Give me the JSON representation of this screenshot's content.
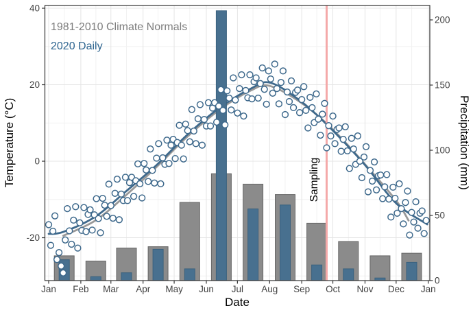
{
  "chart_data": {
    "type": "combo",
    "title": "",
    "x_axis": {
      "label": "Date",
      "tick_labels": [
        "Jan",
        "Feb",
        "Mar",
        "Apr",
        "May",
        "Jun",
        "Jul",
        "Aug",
        "Sep",
        "Oct",
        "Nov",
        "Dec",
        "Jan"
      ]
    },
    "y_left": {
      "label": "Temperature (°C)",
      "ticks": [
        -20,
        0,
        20,
        40
      ],
      "range": [
        -31,
        41
      ]
    },
    "y_right": {
      "label": "Precipitation (mm)",
      "ticks": [
        0,
        50,
        100,
        150,
        200
      ],
      "range": [
        0,
        211
      ]
    },
    "legend": [
      {
        "label": "1981-2010 Climate Normals",
        "color": "#7d7d7d"
      },
      {
        "label": "2020 Daily",
        "color": "#2e6590"
      }
    ],
    "bars_monthly_precip_mm": {
      "categories": [
        "Jan",
        "Feb",
        "Mar",
        "Apr",
        "May",
        "Jun",
        "Jul",
        "Aug",
        "Sep",
        "Oct",
        "Nov",
        "Dec"
      ],
      "series": [
        {
          "name": "1981-2010 Climate Normals",
          "values": [
            19,
            15,
            25,
            26,
            60,
            82,
            74,
            66,
            44,
            30,
            19,
            21
          ]
        },
        {
          "name": "2020 Daily",
          "values": [
            16,
            3,
            6,
            24,
            9,
            207,
            55,
            58,
            12,
            9,
            2,
            14
          ]
        }
      ]
    },
    "smooth_temp_lines_c": {
      "normals_anchors": [
        [
          15,
          -19.5
        ],
        [
          46,
          -15.5
        ],
        [
          75,
          -9
        ],
        [
          105,
          -1.5
        ],
        [
          135,
          6.5
        ],
        [
          166,
          13.5
        ],
        [
          196,
          18.5
        ],
        [
          214,
          19.7
        ],
        [
          245,
          15.2
        ],
        [
          275,
          8.3
        ],
        [
          306,
          -0.8
        ],
        [
          336,
          -10.3
        ],
        [
          348,
          -15.5
        ]
      ],
      "daily2020_anchors": [
        [
          1,
          -19
        ],
        [
          15,
          -18.5
        ],
        [
          46,
          -14.5
        ],
        [
          75,
          -8
        ],
        [
          105,
          -1
        ],
        [
          135,
          7
        ],
        [
          166,
          14
        ],
        [
          196,
          19
        ],
        [
          215,
          20.5
        ],
        [
          245,
          15.5
        ],
        [
          275,
          8
        ],
        [
          306,
          -1
        ],
        [
          336,
          -11
        ],
        [
          366,
          -16.5
        ]
      ]
    },
    "daily_temp_points_c": [
      [
        1,
        -16.6
      ],
      [
        3,
        -22
      ],
      [
        5,
        -18.3
      ],
      [
        7,
        -14.3
      ],
      [
        9,
        -25.7
      ],
      [
        11,
        -23.9
      ],
      [
        13,
        -27.4
      ],
      [
        15,
        -29.2
      ],
      [
        17,
        -20.6
      ],
      [
        19,
        -12.4
      ],
      [
        21,
        -18.2
      ],
      [
        23,
        -21.7
      ],
      [
        25,
        -15.4
      ],
      [
        27,
        -11.9
      ],
      [
        29,
        -22.7
      ],
      [
        31,
        -16.1
      ],
      [
        33,
        -18.1
      ],
      [
        35,
        -12.1
      ],
      [
        37,
        -18.4
      ],
      [
        39,
        -13.9
      ],
      [
        41,
        -12.7
      ],
      [
        43,
        -18
      ],
      [
        45,
        -14
      ],
      [
        47,
        -9.8
      ],
      [
        49,
        -15
      ],
      [
        51,
        -18.7
      ],
      [
        53,
        -9.7
      ],
      [
        55,
        -11.5
      ],
      [
        57,
        -14.4
      ],
      [
        59,
        -6
      ],
      [
        61,
        -11.6
      ],
      [
        63,
        -14.9
      ],
      [
        65,
        -8.4
      ],
      [
        67,
        -4.7
      ],
      [
        69,
        -15.3
      ],
      [
        71,
        -8.6
      ],
      [
        73,
        -10.3
      ],
      [
        75,
        -4.2
      ],
      [
        77,
        -10.3
      ],
      [
        79,
        -5.6
      ],
      [
        81,
        -4.2
      ],
      [
        83,
        -9.2
      ],
      [
        85,
        -5.1
      ],
      [
        87,
        -0.7
      ],
      [
        89,
        -5.9
      ],
      [
        91,
        -9.6
      ],
      [
        93,
        -0.6
      ],
      [
        95,
        -2.3
      ],
      [
        97,
        -5.3
      ],
      [
        99,
        3.2
      ],
      [
        101,
        -2.4
      ],
      [
        103,
        -5.7
      ],
      [
        105,
        0.8
      ],
      [
        107,
        4.6
      ],
      [
        109,
        -5.9
      ],
      [
        111,
        0.9
      ],
      [
        113,
        -0.8
      ],
      [
        115,
        5.5
      ],
      [
        117,
        -0.6
      ],
      [
        119,
        4.2
      ],
      [
        121,
        5.7
      ],
      [
        123,
        0.7
      ],
      [
        125,
        4.9
      ],
      [
        127,
        9.4
      ],
      [
        129,
        4.2
      ],
      [
        131,
        0.6
      ],
      [
        133,
        9.7
      ],
      [
        135,
        8
      ],
      [
        137,
        5.1
      ],
      [
        139,
        13.5
      ],
      [
        141,
        7.9
      ],
      [
        143,
        4.6
      ],
      [
        145,
        11.1
      ],
      [
        147,
        14.8
      ],
      [
        149,
        4.2
      ],
      [
        151,
        10.9
      ],
      [
        153,
        9.2
      ],
      [
        155,
        15.3
      ],
      [
        157,
        9.2
      ],
      [
        159,
        13.9
      ],
      [
        161,
        15.3
      ],
      [
        163,
        10.2
      ],
      [
        165,
        14.4
      ],
      [
        167,
        18.7
      ],
      [
        169,
        13.3
      ],
      [
        171,
        9.5
      ],
      [
        173,
        18.4
      ],
      [
        175,
        16.5
      ],
      [
        177,
        13.4
      ],
      [
        179,
        21.8
      ],
      [
        181,
        16
      ],
      [
        183,
        12.6
      ],
      [
        185,
        19
      ],
      [
        187,
        22.6
      ],
      [
        189,
        11.8
      ],
      [
        191,
        18.5
      ],
      [
        193,
        16.6
      ],
      [
        195,
        22.6
      ],
      [
        197,
        16.3
      ],
      [
        199,
        20.8
      ],
      [
        201,
        21.8
      ],
      [
        203,
        16.5
      ],
      [
        205,
        20.3
      ],
      [
        207,
        24.4
      ],
      [
        209,
        18.8
      ],
      [
        211,
        14.9
      ],
      [
        213,
        23.6
      ],
      [
        215,
        21.5
      ],
      [
        217,
        17.8
      ],
      [
        219,
        25.4
      ],
      [
        221,
        19
      ],
      [
        223,
        15
      ],
      [
        225,
        20.6
      ],
      [
        227,
        23.6
      ],
      [
        229,
        12.2
      ],
      [
        231,
        18.1
      ],
      [
        233,
        15.6
      ],
      [
        235,
        21
      ],
      [
        237,
        14
      ],
      [
        239,
        18
      ],
      [
        241,
        18.6
      ],
      [
        243,
        12.7
      ],
      [
        245,
        16.1
      ],
      [
        247,
        19.5
      ],
      [
        249,
        13.3
      ],
      [
        251,
        8.7
      ],
      [
        253,
        16.7
      ],
      [
        255,
        14
      ],
      [
        257,
        10.1
      ],
      [
        259,
        17.6
      ],
      [
        261,
        11
      ],
      [
        263,
        6.8
      ],
      [
        265,
        12.3
      ],
      [
        267,
        15.1
      ],
      [
        269,
        3.5
      ],
      [
        271,
        9.3
      ],
      [
        273,
        6.6
      ],
      [
        275,
        11.8
      ],
      [
        277,
        4.6
      ],
      [
        279,
        8.3
      ],
      [
        281,
        8.7
      ],
      [
        283,
        2.6
      ],
      [
        285,
        5.7
      ],
      [
        287,
        9
      ],
      [
        289,
        2.7
      ],
      [
        291,
        -1.9
      ],
      [
        293,
        6
      ],
      [
        295,
        3.2
      ],
      [
        297,
        -0.8
      ],
      [
        299,
        6.6
      ],
      [
        301,
        0
      ],
      [
        303,
        -4.3
      ],
      [
        305,
        1.1
      ],
      [
        307,
        3.8
      ],
      [
        309,
        -8
      ],
      [
        311,
        -2.4
      ],
      [
        313,
        -5.2
      ],
      [
        315,
        -0.2
      ],
      [
        317,
        -7.5
      ],
      [
        319,
        -3.8
      ],
      [
        321,
        -3.6
      ],
      [
        323,
        -9.8
      ],
      [
        325,
        -6.7
      ],
      [
        327,
        -3.5
      ],
      [
        329,
        -9.9
      ],
      [
        331,
        -14.6
      ],
      [
        333,
        -6.8
      ],
      [
        335,
        -9.7
      ],
      [
        337,
        -13.6
      ],
      [
        339,
        -5.9
      ],
      [
        341,
        -12.4
      ],
      [
        343,
        -16.4
      ],
      [
        345,
        -10.8
      ],
      [
        347,
        -7.8
      ],
      [
        349,
        -19.3
      ],
      [
        351,
        -13.4
      ],
      [
        353,
        -15.9
      ],
      [
        355,
        -10.6
      ],
      [
        357,
        -17.5
      ],
      [
        359,
        -13.6
      ],
      [
        361,
        -13
      ],
      [
        363,
        -18.9
      ],
      [
        365,
        -15.5
      ]
    ],
    "sampling_marker": {
      "label": "Sampling",
      "day_of_year": 269
    },
    "grid": "on",
    "legend_position": "top-left-inside"
  },
  "colors": {
    "normals_gray": "#8b8b8b",
    "normals_gray_border": "#666666",
    "normals_line_gray": "#999999",
    "daily_blue": "#48708f",
    "daily_blue_border": "#3a617e",
    "daily_line_blue": "#3e698c",
    "point_stroke_blue": "#3e698c",
    "point_fill": "#ffffff",
    "sampling_pink": "#f4a9a9",
    "grid_major": "#e4e4e4",
    "grid_minor": "#f2f2f2",
    "panel_border": "#2f2f2f",
    "tick_text": "#404040",
    "axis_title_text": "#000000",
    "sampling_text": "#000000"
  }
}
